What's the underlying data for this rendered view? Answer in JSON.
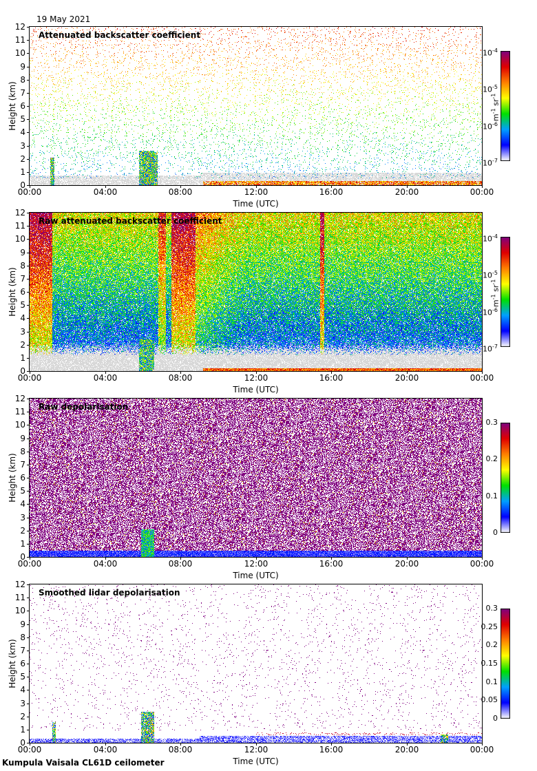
{
  "header": {
    "date": "19 May 2021"
  },
  "footer": {
    "label": "Kumpula Vaisala CL61D ceilometer"
  },
  "colors": {
    "scale": [
      "#ffffff",
      "#0000ff",
      "#00a0ff",
      "#00e000",
      "#ffff00",
      "#ff8000",
      "#e00000",
      "#800080"
    ],
    "noise_gray": "#d8d8d8"
  },
  "chart_data": [
    {
      "type": "heatmap",
      "title": "Attenuated backscatter coefficient",
      "xlabel": "Time (UTC)",
      "ylabel": "Height (km)",
      "x_ticks": [
        "00:00",
        "04:00",
        "08:00",
        "12:00",
        "16:00",
        "20:00",
        "00:00"
      ],
      "y_ticks": [
        "0",
        "1",
        "2",
        "3",
        "4",
        "5",
        "6",
        "7",
        "8",
        "9",
        "10",
        "11",
        "12"
      ],
      "xlim_hours": [
        0,
        24
      ],
      "ylim_km": [
        0,
        12
      ],
      "colorbar": {
        "scale": "log",
        "range": [
          1e-07,
          0.0001
        ],
        "labels": [
          {
            "base": "10",
            "exp": "-4"
          },
          {
            "base": "10",
            "exp": "-5"
          },
          {
            "base": "10",
            "exp": "-6"
          },
          {
            "base": "10",
            "exp": "-7"
          }
        ],
        "unit": {
          "a": "m",
          "a_exp": "-1",
          "b": " sr",
          "b_exp": "-1"
        }
      }
    },
    {
      "type": "heatmap",
      "title": "Raw attenuated backscatter coefficient",
      "xlabel": "Time (UTC)",
      "ylabel": "Height (km)",
      "x_ticks": [
        "00:00",
        "04:00",
        "08:00",
        "12:00",
        "16:00",
        "20:00",
        "00:00"
      ],
      "y_ticks": [
        "0",
        "1",
        "2",
        "3",
        "4",
        "5",
        "6",
        "7",
        "8",
        "9",
        "10",
        "11",
        "12"
      ],
      "xlim_hours": [
        0,
        24
      ],
      "ylim_km": [
        0,
        12
      ],
      "colorbar": {
        "scale": "log",
        "range": [
          1e-07,
          0.0001
        ],
        "labels": [
          {
            "base": "10",
            "exp": "-4"
          },
          {
            "base": "10",
            "exp": "-5"
          },
          {
            "base": "10",
            "exp": "-6"
          },
          {
            "base": "10",
            "exp": "-7"
          }
        ],
        "unit": {
          "a": "m",
          "a_exp": "-1",
          "b": " sr",
          "b_exp": "-1"
        }
      }
    },
    {
      "type": "heatmap",
      "title": "Raw depolarisation",
      "xlabel": "Time (UTC)",
      "ylabel": "Height (km)",
      "x_ticks": [
        "00:00",
        "04:00",
        "08:00",
        "12:00",
        "16:00",
        "20:00",
        "00:00"
      ],
      "y_ticks": [
        "0",
        "1",
        "2",
        "3",
        "4",
        "5",
        "6",
        "7",
        "8",
        "9",
        "10",
        "11",
        "12"
      ],
      "xlim_hours": [
        0,
        24
      ],
      "ylim_km": [
        0,
        12
      ],
      "colorbar": {
        "scale": "linear",
        "range": [
          0,
          0.3
        ],
        "labels": [
          "0.3",
          "0.2",
          "0.1",
          "0"
        ]
      }
    },
    {
      "type": "heatmap",
      "title": "Smoothed lidar depolarisation",
      "xlabel": "Time (UTC)",
      "ylabel": "Height (km)",
      "x_ticks": [
        "00:00",
        "04:00",
        "08:00",
        "12:00",
        "16:00",
        "20:00",
        "00:00"
      ],
      "y_ticks": [
        "0",
        "1",
        "2",
        "3",
        "4",
        "5",
        "6",
        "7",
        "8",
        "9",
        "10",
        "11",
        "12"
      ],
      "xlim_hours": [
        0,
        24
      ],
      "ylim_km": [
        0,
        12
      ],
      "colorbar": {
        "scale": "linear",
        "range": [
          0,
          0.3
        ],
        "labels": [
          "0.3",
          "0.25",
          "0.2",
          "0.15",
          "0.1",
          "0.05",
          "0"
        ]
      }
    }
  ]
}
